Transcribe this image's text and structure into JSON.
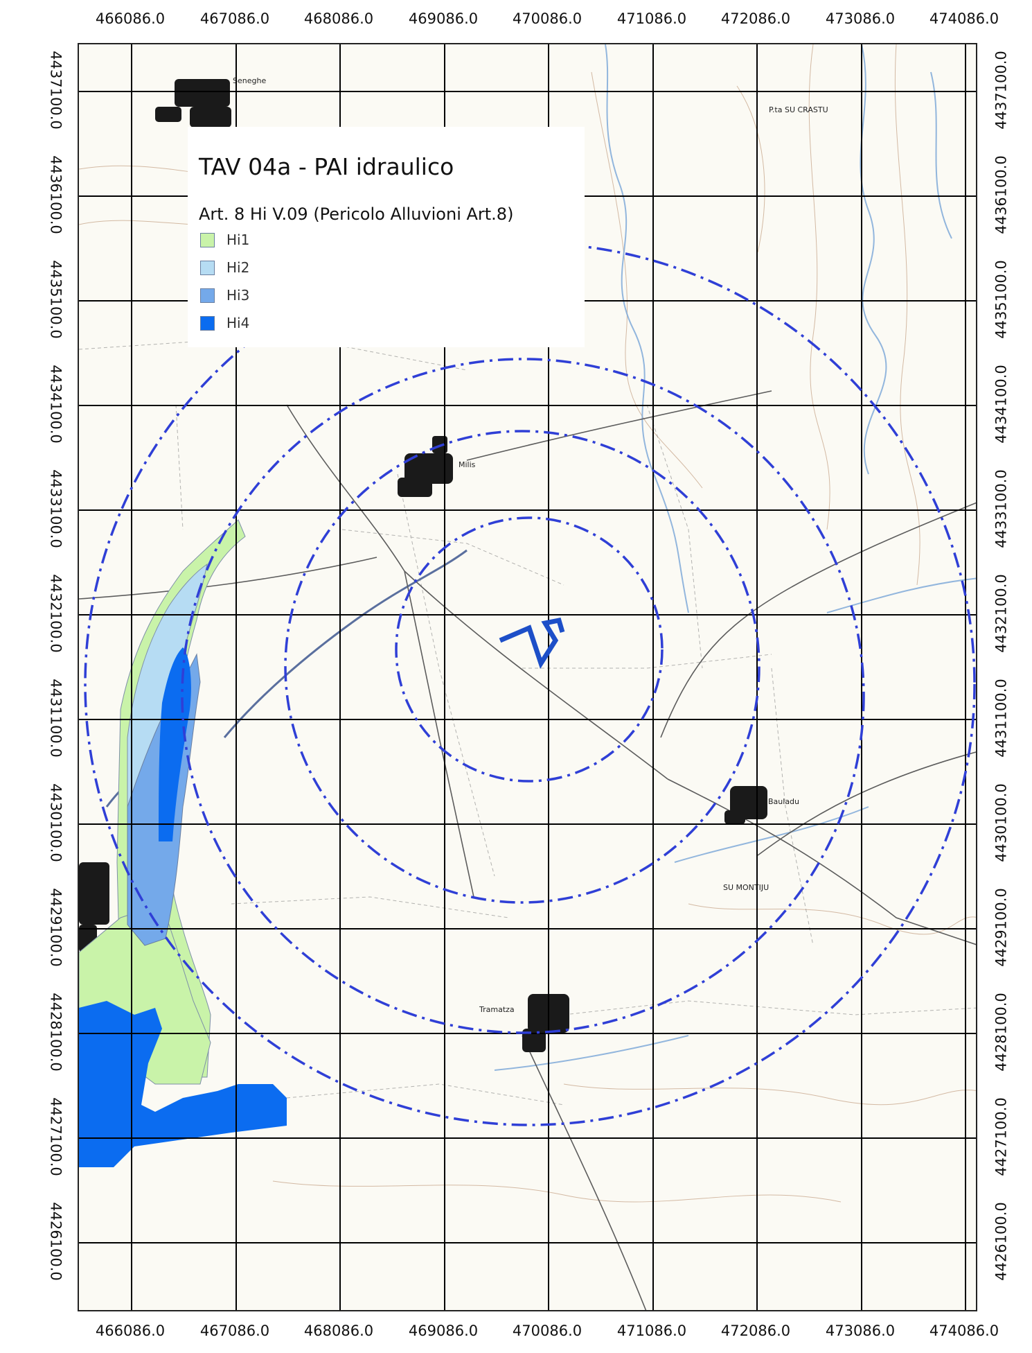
{
  "legend": {
    "title": "TAV 04a - PAI idraulico",
    "subtitle": "Art. 8 Hi V.09 (Pericolo Alluvioni Art.8)",
    "items": [
      {
        "label": "Hi1",
        "color": "#c9f3a9"
      },
      {
        "label": "Hi2",
        "color": "#b6dcf3"
      },
      {
        "label": "Hi3",
        "color": "#74a9ea"
      },
      {
        "label": "Hi4",
        "color": "#0b6cf0"
      }
    ]
  },
  "axes": {
    "x_ticks": [
      "466086.0",
      "467086.0",
      "468086.0",
      "469086.0",
      "470086.0",
      "471086.0",
      "472086.0",
      "473086.0",
      "474086.0"
    ],
    "y_ticks": [
      "4437100.0",
      "4436100.0",
      "4435100.0",
      "4434100.0",
      "4433100.0",
      "4432100.0",
      "4431100.0",
      "4430100.0",
      "4429100.0",
      "4428100.0",
      "4427100.0",
      "4426100.0"
    ]
  },
  "places": {
    "seneghe": "Seneghe",
    "milis": "Milis",
    "bauladu": "Bauladu",
    "tramatza": "Tramatza",
    "su_montiju": "SU MONTIJU",
    "su_crastu": "P.ta SU CRASTU"
  },
  "colors": {
    "buffer": "#2f3fd6",
    "site": "#1d4fc8",
    "grid": "#000000"
  }
}
